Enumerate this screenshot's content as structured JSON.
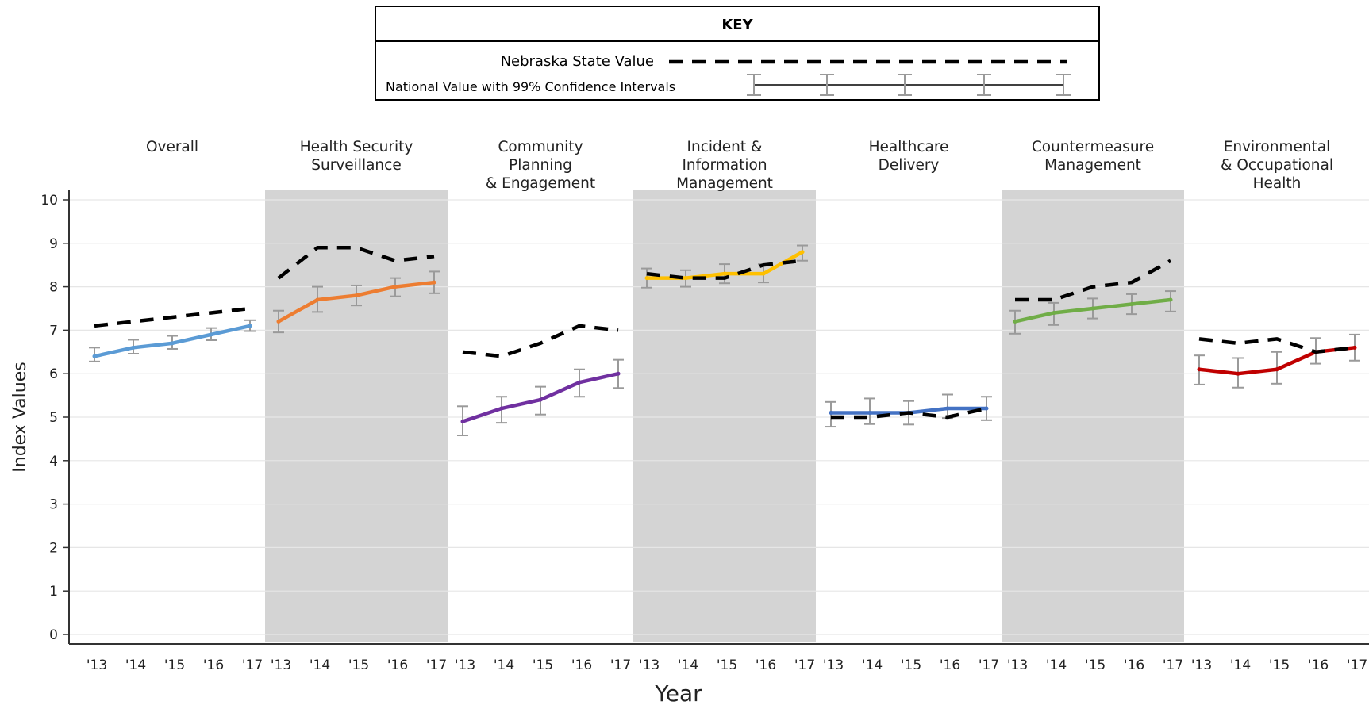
{
  "key": {
    "title": "KEY",
    "state_label": "Nebraska State Value",
    "national_label": "National Value with 99% Confidence Intervals"
  },
  "colors": {
    "state_line": "#000000",
    "error_bar": "#9a9a9a",
    "panel_shade": "#d4d4d4",
    "grid": "#e6e6e6"
  },
  "chart_data": {
    "type": "line",
    "ylabel": "Index Values",
    "xlabel": "Year",
    "ylim": [
      0,
      10
    ],
    "yticks": [
      "0",
      "1",
      "2",
      "3",
      "4",
      "5",
      "6",
      "7",
      "8",
      "9",
      "10"
    ],
    "x": [
      "'13",
      "'14",
      "'15",
      "'16",
      "'17"
    ],
    "grid": true,
    "panels": [
      {
        "title": [
          "Overall"
        ],
        "shaded": false,
        "color": "#5b9bd5",
        "national": [
          6.4,
          6.6,
          6.7,
          6.9,
          7.1
        ],
        "ci": [
          [
            6.28,
            6.6
          ],
          [
            6.46,
            6.78
          ],
          [
            6.57,
            6.87
          ],
          [
            6.77,
            7.05
          ],
          [
            6.98,
            7.23
          ]
        ],
        "state": [
          7.1,
          7.2,
          7.3,
          7.4,
          7.5
        ]
      },
      {
        "title": [
          "Health Security",
          "Surveillance"
        ],
        "shaded": true,
        "color": "#ed7d31",
        "national": [
          7.2,
          7.7,
          7.8,
          8.0,
          8.1
        ],
        "ci": [
          [
            6.95,
            7.45
          ],
          [
            7.42,
            8.0
          ],
          [
            7.57,
            8.03
          ],
          [
            7.78,
            8.2
          ],
          [
            7.85,
            8.35
          ]
        ],
        "state": [
          8.2,
          8.9,
          8.9,
          8.6,
          8.7
        ]
      },
      {
        "title": [
          "Community",
          "Planning",
          "& Engagement"
        ],
        "shaded": false,
        "color": "#7030a0",
        "national": [
          4.9,
          5.2,
          5.4,
          5.8,
          6.0
        ],
        "ci": [
          [
            4.58,
            5.25
          ],
          [
            4.87,
            5.47
          ],
          [
            5.06,
            5.7
          ],
          [
            5.47,
            6.1
          ],
          [
            5.67,
            6.32
          ]
        ],
        "state": [
          6.5,
          6.4,
          6.7,
          7.1,
          7.0
        ]
      },
      {
        "title": [
          "Incident &",
          "Information",
          "Management"
        ],
        "shaded": true,
        "color": "#ffc000",
        "national": [
          8.2,
          8.2,
          8.3,
          8.3,
          8.8
        ],
        "ci": [
          [
            7.98,
            8.42
          ],
          [
            8.0,
            8.38
          ],
          [
            8.08,
            8.52
          ],
          [
            8.1,
            8.52
          ],
          [
            8.6,
            8.95
          ]
        ],
        "state": [
          8.3,
          8.2,
          8.2,
          8.5,
          8.6
        ]
      },
      {
        "title": [
          "Healthcare",
          "Delivery"
        ],
        "shaded": false,
        "color": "#4472c4",
        "national": [
          5.1,
          5.1,
          5.1,
          5.2,
          5.2
        ],
        "ci": [
          [
            4.78,
            5.35
          ],
          [
            4.84,
            5.43
          ],
          [
            4.83,
            5.37
          ],
          [
            4.98,
            5.52
          ],
          [
            4.93,
            5.47
          ]
        ],
        "state": [
          5.0,
          5.0,
          5.1,
          5.0,
          5.2
        ]
      },
      {
        "title": [
          "Countermeasure",
          "Management"
        ],
        "shaded": true,
        "color": "#70ad47",
        "national": [
          7.2,
          7.4,
          7.5,
          7.6,
          7.7
        ],
        "ci": [
          [
            6.92,
            7.45
          ],
          [
            7.12,
            7.63
          ],
          [
            7.27,
            7.73
          ],
          [
            7.37,
            7.83
          ],
          [
            7.43,
            7.9
          ]
        ],
        "state": [
          7.7,
          7.7,
          8.0,
          8.1,
          8.6
        ]
      },
      {
        "title": [
          "Environmental",
          "& Occupational",
          "Health"
        ],
        "shaded": false,
        "color": "#c00000",
        "national": [
          6.1,
          6.0,
          6.1,
          6.5,
          6.6
        ],
        "ci": [
          [
            5.75,
            6.42
          ],
          [
            5.68,
            6.36
          ],
          [
            5.77,
            6.5
          ],
          [
            6.23,
            6.82
          ],
          [
            6.3,
            6.9
          ]
        ],
        "state": [
          6.8,
          6.7,
          6.8,
          6.5,
          6.6
        ]
      }
    ]
  }
}
